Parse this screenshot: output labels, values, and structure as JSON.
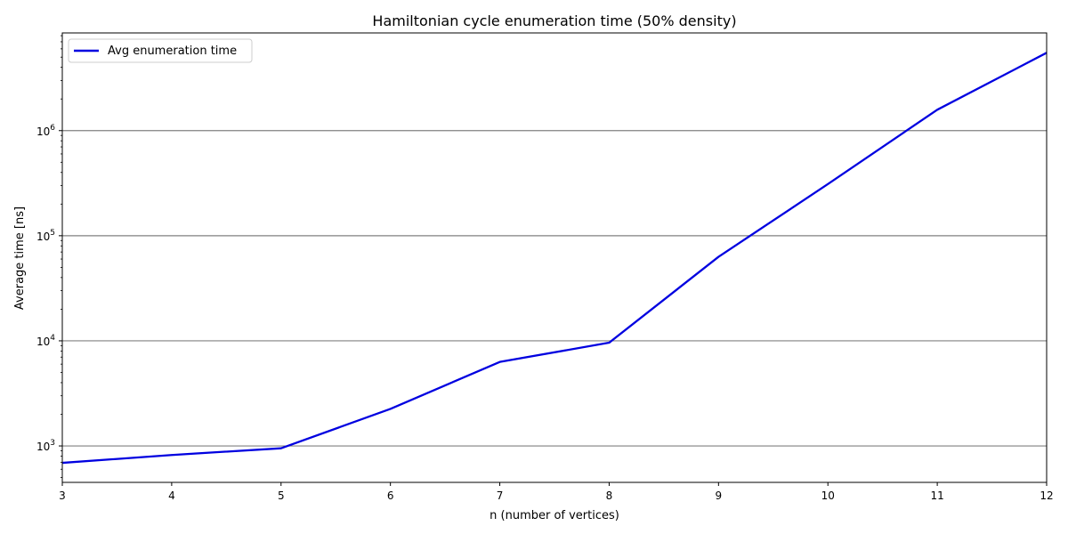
{
  "chart_data": {
    "type": "line",
    "title": "Hamiltonian cycle enumeration time (50% density)",
    "xlabel": "n (number of vertices)",
    "ylabel": "Average time [ns]",
    "yscale": "log",
    "xlim": [
      3,
      12
    ],
    "ylim": [
      450,
      8500000
    ],
    "x_ticks": [
      3,
      4,
      5,
      6,
      7,
      8,
      9,
      10,
      11,
      12
    ],
    "y_ticks": [
      1000,
      10000,
      100000,
      1000000
    ],
    "grid": "y-major",
    "legend_position": "top-left",
    "series": [
      {
        "name": "Avg enumeration time",
        "color": "#0000e0",
        "x": [
          3,
          4,
          5,
          6,
          7,
          8,
          9,
          10,
          11,
          12
        ],
        "y": [
          690,
          820,
          950,
          2250,
          6300,
          9600,
          63000,
          310000,
          1580000,
          5500000
        ]
      }
    ]
  }
}
